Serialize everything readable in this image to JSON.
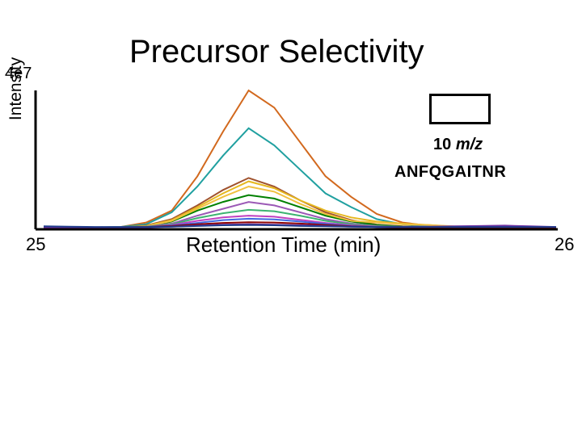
{
  "chart_data": {
    "type": "line",
    "title": "Precursor Selectivity",
    "ylabel": "Intensity",
    "xlabel": "Retention Time (min)",
    "y_max_label": "4e7",
    "x_tick_labels": [
      "25",
      "26"
    ],
    "xlim": [
      25,
      26
    ],
    "ylim": [
      0,
      40000000
    ],
    "window_label": {
      "value": "10",
      "unit": "m/z"
    },
    "peptide": "ANFQGAITNR",
    "x": [
      25.0,
      25.05,
      25.1,
      25.15,
      25.2,
      25.25,
      25.3,
      25.35,
      25.4,
      25.45,
      25.5,
      25.55,
      25.6,
      25.65,
      25.7,
      25.75,
      25.8,
      25.85,
      25.9,
      25.95,
      26.0
    ],
    "series": [
      {
        "color": "#d2691e",
        "values": [
          100000.0,
          100000.0,
          100000.0,
          200000.0,
          1500000.0,
          5000000.0,
          15000000.0,
          28000000.0,
          40000000.0,
          35000000.0,
          25000000.0,
          15000000.0,
          9000000.0,
          4000000.0,
          1500000.0,
          600000.0,
          300000.0,
          300000.0,
          200000.0,
          200000.0,
          100000.0
        ]
      },
      {
        "color": "#20a0a0",
        "values": [
          100000.0,
          100000.0,
          100000.0,
          200000.0,
          1000000.0,
          4500000.0,
          12000000.0,
          21000000.0,
          29000000.0,
          24000000.0,
          17000000.0,
          10000000.0,
          6000000.0,
          2500000.0,
          1000000.0,
          500000.0,
          300000.0,
          200000.0,
          200000.0,
          100000.0,
          100000.0
        ]
      },
      {
        "color": "#a0522d",
        "values": [
          100000.0,
          100000.0,
          100000.0,
          100000.0,
          600000.0,
          2500000.0,
          6500000.0,
          11000000.0,
          14500000.0,
          12000000.0,
          8000000.0,
          4500000.0,
          2200000.0,
          900000.0,
          400000.0,
          200000.0,
          100000.0,
          100000.0,
          100000.0,
          100000.0,
          100000.0
        ]
      },
      {
        "color": "#e6b820",
        "values": [
          100000.0,
          100000.0,
          100000.0,
          100000.0,
          500000.0,
          2200000.0,
          6000000.0,
          10000000.0,
          13500000.0,
          11500000.0,
          8000000.0,
          5000000.0,
          3000000.0,
          1800000.0,
          1200000.0,
          800000.0,
          300000.0,
          200000.0,
          100000.0,
          100000.0,
          100000.0
        ]
      },
      {
        "color": "#008000",
        "values": [
          100000.0,
          100000.0,
          100000.0,
          100000.0,
          400000.0,
          1800000.0,
          5000000.0,
          7500000.0,
          9500000.0,
          8500000.0,
          6000000.0,
          3500000.0,
          1800000.0,
          800000.0,
          300000.0,
          200000.0,
          100000.0,
          100000.0,
          100000.0,
          100000.0,
          100000.0
        ]
      },
      {
        "color": "#f0c040",
        "values": [
          100000.0,
          100000.0,
          100000.0,
          100000.0,
          400000.0,
          2000000.0,
          5500000.0,
          9000000.0,
          12000000.0,
          10500000.0,
          7000000.0,
          4000000.0,
          2000000.0,
          1500000.0,
          1000000.0,
          800000.0,
          400000.0,
          200000.0,
          100000.0,
          100000.0,
          100000.0
        ]
      },
      {
        "color": "#9b59b6",
        "values": [
          100000.0,
          100000.0,
          100000.0,
          100000.0,
          300000.0,
          1200000.0,
          3500000.0,
          5500000.0,
          7500000.0,
          6500000.0,
          4500000.0,
          2500000.0,
          1200000.0,
          500000.0,
          200000.0,
          100000.0,
          100000.0,
          200000.0,
          300000.0,
          200000.0,
          100000.0
        ]
      },
      {
        "color": "#3cb371",
        "values": [
          100000.0,
          100000.0,
          100000.0,
          100000.0,
          300000.0,
          1000000.0,
          2800000.0,
          4200000.0,
          5200000.0,
          4800000.0,
          3500000.0,
          2000000.0,
          1000000.0,
          400000.0,
          200000.0,
          100000.0,
          100000.0,
          100000.0,
          100000.0,
          100000.0,
          100000.0
        ]
      },
      {
        "color": "#c040c0",
        "values": [
          100000.0,
          100000.0,
          100000.0,
          100000.0,
          200000.0,
          800000.0,
          2000000.0,
          3000000.0,
          3500000.0,
          3200000.0,
          2300000.0,
          1400000.0,
          700000.0,
          300000.0,
          100000.0,
          100000.0,
          100000.0,
          100000.0,
          100000.0,
          100000.0,
          100000.0
        ]
      },
      {
        "color": "#4169e1",
        "values": [
          200000.0,
          200000.0,
          100000.0,
          100000.0,
          200000.0,
          600000.0,
          1400000.0,
          2200000.0,
          2600000.0,
          2400000.0,
          1800000.0,
          1100000.0,
          500000.0,
          200000.0,
          100000.0,
          100000.0,
          100000.0,
          100000.0,
          100000.0,
          100000.0,
          100000.0
        ]
      },
      {
        "color": "#8b0000",
        "values": [
          100000.0,
          100000.0,
          100000.0,
          100000.0,
          200000.0,
          500000.0,
          1000000.0,
          1400000.0,
          1600000.0,
          1500000.0,
          1200000.0,
          800000.0,
          400000.0,
          200000.0,
          100000.0,
          100000.0,
          100000.0,
          100000.0,
          100000.0,
          100000.0,
          100000.0
        ]
      },
      {
        "color": "#7030a0",
        "values": [
          100000.0,
          100000.0,
          100000.0,
          100000.0,
          100000.0,
          300000.0,
          600000.0,
          900000.0,
          1000000.0,
          900000.0,
          700000.0,
          500000.0,
          300000.0,
          200000.0,
          200000.0,
          300000.0,
          400000.0,
          500000.0,
          600000.0,
          400000.0,
          200000.0
        ]
      },
      {
        "color": "#1e3a8a",
        "values": [
          400000.0,
          300000.0,
          200000.0,
          200000.0,
          200000.0,
          300000.0,
          500000.0,
          700000.0,
          800000.0,
          700000.0,
          500000.0,
          400000.0,
          300000.0,
          200000.0,
          200000.0,
          200000.0,
          200000.0,
          200000.0,
          200000.0,
          200000.0,
          200000.0
        ]
      }
    ]
  }
}
